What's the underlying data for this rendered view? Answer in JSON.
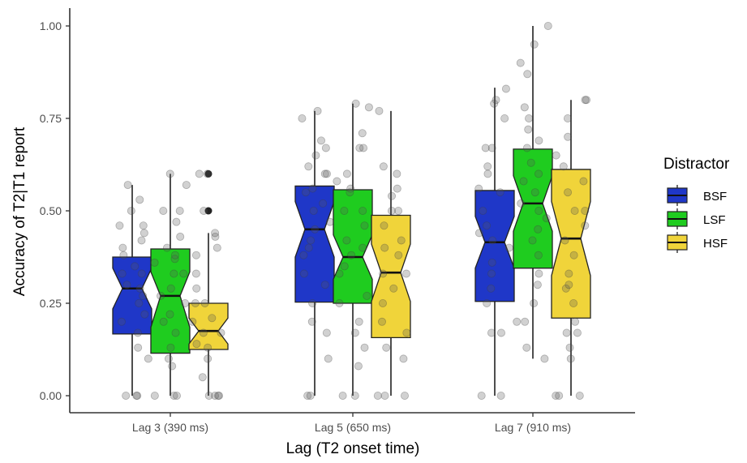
{
  "chart_data": {
    "type": "box",
    "xlabel": "Lag (T2 onset time)",
    "ylabel": "Accuracy of T2|T1 report",
    "ylim": [
      0,
      1.04
    ],
    "y_ticks": [
      "0.00",
      "0.25",
      "0.50",
      "0.75",
      "1.00"
    ],
    "y_tick_values": [
      0,
      0.25,
      0.5,
      0.75,
      1.0
    ],
    "categories": [
      "Lag 3 (390 ms)",
      "Lag 5 (650 ms)",
      "Lag 7 (910 ms)"
    ],
    "legend": {
      "title": "Distractor",
      "position": "right",
      "entries": [
        "BSF",
        "LSF",
        "HSF"
      ]
    },
    "grid": false,
    "series": [
      {
        "name": "BSF",
        "color": "#1f37c8",
        "boxes": [
          {
            "min": 0.0,
            "q1": 0.167,
            "median": 0.29,
            "q3": 0.375,
            "max": 0.57,
            "notch_low": 0.235,
            "notch_high": 0.345,
            "outliers": []
          },
          {
            "min": 0.0,
            "q1": 0.253,
            "median": 0.45,
            "q3": 0.567,
            "max": 0.77,
            "notch_low": 0.375,
            "notch_high": 0.525,
            "outliers": []
          },
          {
            "min": 0.0,
            "q1": 0.255,
            "median": 0.415,
            "q3": 0.555,
            "max": 0.833,
            "notch_low": 0.345,
            "notch_high": 0.485,
            "outliers": []
          }
        ],
        "points": [
          [
            0.0,
            0.0,
            0.0,
            0.1,
            0.13,
            0.17,
            0.2,
            0.22,
            0.25,
            0.27,
            0.29,
            0.3,
            0.33,
            0.33,
            0.35,
            0.38,
            0.4,
            0.42,
            0.44,
            0.46,
            0.46,
            0.5,
            0.53,
            0.57
          ],
          [
            0.0,
            0.0,
            0.1,
            0.17,
            0.2,
            0.25,
            0.3,
            0.33,
            0.38,
            0.4,
            0.42,
            0.45,
            0.47,
            0.5,
            0.52,
            0.55,
            0.56,
            0.6,
            0.6,
            0.62,
            0.65,
            0.67,
            0.69,
            0.75,
            0.77
          ],
          [
            0.0,
            0.0,
            0.17,
            0.17,
            0.25,
            0.29,
            0.33,
            0.36,
            0.4,
            0.42,
            0.44,
            0.46,
            0.5,
            0.55,
            0.56,
            0.6,
            0.62,
            0.67,
            0.67,
            0.75,
            0.79,
            0.8,
            0.83
          ]
        ]
      },
      {
        "name": "LSF",
        "color": "#1fcc1f",
        "boxes": [
          {
            "min": 0.0,
            "q1": 0.115,
            "median": 0.27,
            "q3": 0.397,
            "max": 0.6,
            "notch_low": 0.185,
            "notch_high": 0.335,
            "outliers": []
          },
          {
            "min": 0.0,
            "q1": 0.25,
            "median": 0.375,
            "q3": 0.557,
            "max": 0.79,
            "notch_low": 0.315,
            "notch_high": 0.435,
            "outliers": []
          },
          {
            "min": 0.1,
            "q1": 0.345,
            "median": 0.52,
            "q3": 0.667,
            "max": 1.0,
            "notch_low": 0.445,
            "notch_high": 0.595,
            "outliers": []
          }
        ],
        "points": [
          [
            0.0,
            0.0,
            0.0,
            0.08,
            0.1,
            0.13,
            0.17,
            0.2,
            0.22,
            0.25,
            0.27,
            0.29,
            0.33,
            0.33,
            0.36,
            0.37,
            0.38,
            0.4,
            0.43,
            0.47,
            0.5,
            0.5,
            0.57,
            0.6
          ],
          [
            0.0,
            0.0,
            0.08,
            0.13,
            0.17,
            0.2,
            0.25,
            0.27,
            0.33,
            0.35,
            0.38,
            0.4,
            0.42,
            0.46,
            0.5,
            0.5,
            0.55,
            0.56,
            0.58,
            0.6,
            0.67,
            0.67,
            0.71,
            0.78,
            0.79
          ],
          [
            0.1,
            0.13,
            0.2,
            0.2,
            0.25,
            0.3,
            0.33,
            0.38,
            0.42,
            0.45,
            0.48,
            0.5,
            0.52,
            0.55,
            0.58,
            0.6,
            0.63,
            0.67,
            0.69,
            0.72,
            0.75,
            0.78,
            0.87,
            0.9,
            0.95,
            1.0
          ]
        ]
      },
      {
        "name": "HSF",
        "color": "#f0d43a",
        "boxes": [
          {
            "min": 0.0,
            "q1": 0.125,
            "median": 0.175,
            "q3": 0.25,
            "max": 0.44,
            "notch_low": 0.14,
            "notch_high": 0.21,
            "outliers": [
              0.5,
              0.6
            ]
          },
          {
            "min": 0.0,
            "q1": 0.157,
            "median": 0.333,
            "q3": 0.488,
            "max": 0.77,
            "notch_low": 0.255,
            "notch_high": 0.41,
            "outliers": []
          },
          {
            "min": 0.0,
            "q1": 0.21,
            "median": 0.425,
            "q3": 0.612,
            "max": 0.8,
            "notch_low": 0.325,
            "notch_high": 0.525,
            "outliers": []
          }
        ],
        "points": [
          [
            0.0,
            0.0,
            0.0,
            0.0,
            0.05,
            0.1,
            0.13,
            0.14,
            0.17,
            0.17,
            0.2,
            0.21,
            0.25,
            0.25,
            0.29,
            0.33,
            0.38,
            0.4,
            0.43,
            0.44,
            0.5,
            0.6,
            0.6
          ],
          [
            0.0,
            0.0,
            0.0,
            0.1,
            0.13,
            0.17,
            0.2,
            0.25,
            0.29,
            0.33,
            0.33,
            0.38,
            0.4,
            0.42,
            0.46,
            0.5,
            0.5,
            0.54,
            0.56,
            0.6,
            0.62,
            0.77
          ],
          [
            0.0,
            0.0,
            0.0,
            0.1,
            0.13,
            0.17,
            0.17,
            0.2,
            0.25,
            0.29,
            0.3,
            0.33,
            0.38,
            0.42,
            0.46,
            0.5,
            0.5,
            0.55,
            0.58,
            0.62,
            0.65,
            0.7,
            0.75,
            0.8,
            0.8
          ]
        ]
      }
    ]
  }
}
